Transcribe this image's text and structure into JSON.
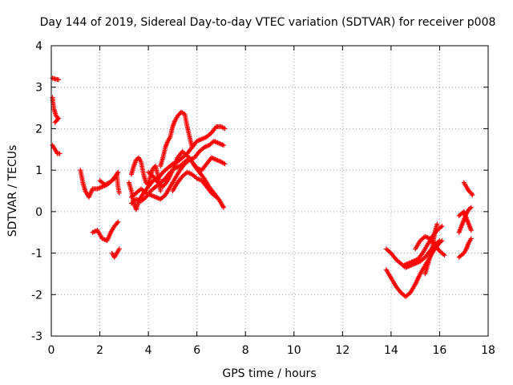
{
  "chart_data": {
    "type": "scatter",
    "title": "Day 144 of 2019, Sidereal Day-to-day VTEC variation (SDTVAR) for receiver p008",
    "xlabel": "GPS time / hours",
    "ylabel": "SDTVAR / TECUs",
    "xlim": [
      0,
      18
    ],
    "ylim": [
      -3,
      4
    ],
    "xticks": [
      0,
      2,
      4,
      6,
      8,
      10,
      12,
      14,
      16,
      18
    ],
    "yticks": [
      -3,
      -2,
      -1,
      0,
      1,
      2,
      3,
      4
    ],
    "grid": true,
    "marker": "+",
    "color": "#ff0000",
    "tracks": [
      {
        "name": "track-a",
        "points": [
          [
            0.05,
            3.22
          ],
          [
            0.15,
            3.2
          ],
          [
            0.3,
            3.18
          ]
        ]
      },
      {
        "name": "track-b",
        "points": [
          [
            0.05,
            2.75
          ],
          [
            0.1,
            2.5
          ],
          [
            0.2,
            2.3
          ],
          [
            0.3,
            2.25
          ],
          [
            0.15,
            2.15
          ]
        ]
      },
      {
        "name": "track-c",
        "points": [
          [
            0.05,
            1.6
          ],
          [
            0.15,
            1.5
          ],
          [
            0.25,
            1.4
          ],
          [
            0.35,
            1.4
          ]
        ]
      },
      {
        "name": "track-d",
        "points": [
          [
            1.2,
            1.0
          ],
          [
            1.3,
            0.7
          ],
          [
            1.4,
            0.5
          ],
          [
            1.55,
            0.35
          ],
          [
            1.7,
            0.55
          ],
          [
            1.9,
            0.55
          ],
          [
            2.1,
            0.6
          ],
          [
            2.3,
            0.65
          ],
          [
            2.5,
            0.75
          ],
          [
            2.7,
            0.9
          ],
          [
            2.75,
            0.6
          ],
          [
            2.8,
            0.45
          ]
        ]
      },
      {
        "name": "track-e",
        "points": [
          [
            2.0,
            0.75
          ],
          [
            2.2,
            0.65
          ],
          [
            2.4,
            0.7
          ],
          [
            2.6,
            0.8
          ],
          [
            2.75,
            0.95
          ]
        ]
      },
      {
        "name": "track-f",
        "points": [
          [
            1.7,
            -0.5
          ],
          [
            1.9,
            -0.45
          ],
          [
            2.1,
            -0.65
          ],
          [
            2.3,
            -0.7
          ],
          [
            2.45,
            -0.5
          ],
          [
            2.6,
            -0.35
          ],
          [
            2.75,
            -0.25
          ]
        ]
      },
      {
        "name": "track-g",
        "points": [
          [
            2.5,
            -1.0
          ],
          [
            2.6,
            -1.1
          ],
          [
            2.7,
            -1.0
          ],
          [
            2.8,
            -0.9
          ]
        ]
      },
      {
        "name": "track-h",
        "points": [
          [
            3.2,
            0.7
          ],
          [
            3.3,
            0.5
          ],
          [
            3.4,
            0.2
          ],
          [
            3.5,
            0.05
          ],
          [
            3.6,
            0.25
          ],
          [
            3.8,
            0.45
          ],
          [
            4.0,
            0.6
          ],
          [
            4.2,
            0.75
          ],
          [
            4.4,
            0.8
          ],
          [
            4.6,
            0.95
          ],
          [
            4.8,
            1.05
          ],
          [
            5.0,
            1.15
          ],
          [
            5.2,
            1.2
          ],
          [
            5.4,
            1.3
          ],
          [
            5.6,
            1.4
          ],
          [
            5.8,
            1.55
          ],
          [
            6.0,
            1.7
          ],
          [
            6.2,
            1.75
          ],
          [
            6.4,
            1.8
          ],
          [
            6.6,
            1.9
          ],
          [
            6.8,
            2.05
          ],
          [
            7.0,
            2.05
          ],
          [
            7.15,
            2.0
          ]
        ]
      },
      {
        "name": "track-i",
        "points": [
          [
            3.3,
            0.35
          ],
          [
            3.5,
            0.45
          ],
          [
            3.7,
            0.55
          ],
          [
            3.9,
            0.45
          ],
          [
            4.1,
            0.4
          ],
          [
            4.3,
            0.35
          ],
          [
            4.5,
            0.3
          ],
          [
            4.7,
            0.4
          ],
          [
            4.9,
            0.6
          ],
          [
            5.1,
            0.8
          ],
          [
            5.3,
            1.0
          ],
          [
            5.5,
            1.15
          ],
          [
            5.7,
            1.25
          ],
          [
            5.9,
            1.3
          ],
          [
            6.1,
            1.45
          ],
          [
            6.3,
            1.55
          ],
          [
            6.5,
            1.6
          ],
          [
            6.7,
            1.7
          ],
          [
            6.9,
            1.65
          ],
          [
            7.1,
            1.6
          ]
        ]
      },
      {
        "name": "track-j",
        "points": [
          [
            3.3,
            0.2
          ],
          [
            3.5,
            0.3
          ],
          [
            3.7,
            0.25
          ],
          [
            3.9,
            0.35
          ],
          [
            4.1,
            0.5
          ],
          [
            4.3,
            0.6
          ],
          [
            4.5,
            0.7
          ],
          [
            4.7,
            0.8
          ],
          [
            4.9,
            0.95
          ],
          [
            5.1,
            1.05
          ],
          [
            5.3,
            1.1
          ],
          [
            5.5,
            1.2
          ],
          [
            5.7,
            1.3
          ],
          [
            5.9,
            1.1
          ],
          [
            6.1,
            0.95
          ],
          [
            6.3,
            0.8
          ],
          [
            6.5,
            0.6
          ],
          [
            6.7,
            0.45
          ],
          [
            6.9,
            0.3
          ],
          [
            7.05,
            0.15
          ],
          [
            7.1,
            0.1
          ]
        ]
      },
      {
        "name": "track-k",
        "points": [
          [
            3.3,
            0.9
          ],
          [
            3.4,
            1.1
          ],
          [
            3.5,
            1.25
          ],
          [
            3.6,
            1.3
          ],
          [
            3.7,
            1.2
          ],
          [
            3.8,
            0.9
          ],
          [
            3.9,
            0.7
          ],
          [
            4.0,
            0.65
          ],
          [
            4.1,
            0.9
          ],
          [
            4.2,
            1.05
          ],
          [
            4.3,
            1.1
          ],
          [
            4.4,
            0.85
          ],
          [
            4.5,
            0.5
          ]
        ]
      },
      {
        "name": "track-l",
        "points": [
          [
            4.5,
            1.1
          ],
          [
            4.6,
            1.3
          ],
          [
            4.7,
            1.55
          ],
          [
            4.8,
            1.7
          ],
          [
            4.9,
            1.8
          ],
          [
            5.0,
            2.05
          ],
          [
            5.1,
            2.2
          ],
          [
            5.2,
            2.3
          ],
          [
            5.35,
            2.4
          ],
          [
            5.5,
            2.35
          ],
          [
            5.6,
            2.05
          ],
          [
            5.7,
            1.8
          ],
          [
            5.8,
            1.55
          ]
        ]
      },
      {
        "name": "track-m",
        "points": [
          [
            4.0,
            0.95
          ],
          [
            4.2,
            0.85
          ],
          [
            4.4,
            0.7
          ],
          [
            4.6,
            0.6
          ],
          [
            4.8,
            0.75
          ],
          [
            5.0,
            1.0
          ],
          [
            5.2,
            1.3
          ],
          [
            5.4,
            1.45
          ],
          [
            5.6,
            1.35
          ],
          [
            5.8,
            1.2
          ],
          [
            6.0,
            1.05
          ],
          [
            6.2,
            1.0
          ],
          [
            6.4,
            1.15
          ],
          [
            6.6,
            1.3
          ],
          [
            6.8,
            1.25
          ],
          [
            7.0,
            1.2
          ],
          [
            7.15,
            1.15
          ]
        ]
      },
      {
        "name": "track-n",
        "points": [
          [
            5.0,
            0.5
          ],
          [
            5.2,
            0.7
          ],
          [
            5.4,
            0.85
          ],
          [
            5.6,
            0.95
          ],
          [
            5.8,
            0.9
          ],
          [
            6.0,
            0.8
          ],
          [
            6.2,
            0.75
          ],
          [
            6.4,
            0.6
          ],
          [
            6.6,
            0.45
          ],
          [
            6.8,
            0.35
          ]
        ]
      },
      {
        "name": "track-o",
        "points": [
          [
            13.8,
            -0.9
          ],
          [
            14.0,
            -1.0
          ],
          [
            14.2,
            -1.15
          ],
          [
            14.4,
            -1.25
          ],
          [
            14.6,
            -1.35
          ],
          [
            14.8,
            -1.3
          ],
          [
            15.0,
            -1.25
          ],
          [
            15.2,
            -1.2
          ],
          [
            15.4,
            -1.1
          ],
          [
            15.6,
            -0.95
          ],
          [
            15.8,
            -0.8
          ],
          [
            16.0,
            -0.7
          ]
        ]
      },
      {
        "name": "track-p",
        "points": [
          [
            13.8,
            -1.4
          ],
          [
            14.0,
            -1.6
          ],
          [
            14.2,
            -1.8
          ],
          [
            14.4,
            -1.95
          ],
          [
            14.6,
            -2.05
          ],
          [
            14.8,
            -1.95
          ],
          [
            15.0,
            -1.75
          ],
          [
            15.2,
            -1.5
          ],
          [
            15.4,
            -1.3
          ],
          [
            15.6,
            -1.1
          ],
          [
            15.8,
            -0.9
          ],
          [
            16.0,
            -0.75
          ],
          [
            16.1,
            -0.7
          ]
        ]
      },
      {
        "name": "track-q",
        "points": [
          [
            14.5,
            -1.3
          ],
          [
            14.7,
            -1.25
          ],
          [
            14.9,
            -1.2
          ],
          [
            15.1,
            -1.15
          ],
          [
            15.3,
            -1.0
          ],
          [
            15.5,
            -0.8
          ],
          [
            15.7,
            -0.6
          ],
          [
            15.9,
            -0.45
          ],
          [
            16.1,
            -0.35
          ]
        ]
      },
      {
        "name": "track-r",
        "points": [
          [
            15.0,
            -0.9
          ],
          [
            15.2,
            -0.7
          ],
          [
            15.4,
            -0.6
          ],
          [
            15.6,
            -0.65
          ],
          [
            15.8,
            -0.8
          ],
          [
            16.0,
            -0.95
          ],
          [
            16.2,
            -1.05
          ]
        ]
      },
      {
        "name": "track-s",
        "points": [
          [
            15.4,
            -1.5
          ],
          [
            15.5,
            -1.3
          ],
          [
            15.6,
            -1.1
          ],
          [
            15.7,
            -0.9
          ],
          [
            15.8,
            -0.5
          ],
          [
            15.9,
            -0.3
          ]
        ]
      },
      {
        "name": "track-t",
        "points": [
          [
            16.8,
            -1.1
          ],
          [
            16.9,
            -1.05
          ],
          [
            17.0,
            -1.0
          ],
          [
            17.1,
            -0.9
          ],
          [
            17.2,
            -0.75
          ],
          [
            17.3,
            -0.65
          ]
        ]
      },
      {
        "name": "track-u",
        "points": [
          [
            16.8,
            -0.1
          ],
          [
            16.9,
            -0.05
          ],
          [
            17.0,
            0.0
          ],
          [
            17.1,
            -0.15
          ],
          [
            17.2,
            -0.3
          ],
          [
            17.3,
            -0.45
          ]
        ]
      },
      {
        "name": "track-v",
        "points": [
          [
            16.8,
            -0.5
          ],
          [
            16.9,
            -0.35
          ],
          [
            17.0,
            -0.2
          ],
          [
            17.1,
            -0.05
          ],
          [
            17.2,
            0.05
          ],
          [
            17.3,
            0.1
          ]
        ]
      },
      {
        "name": "track-w",
        "points": [
          [
            17.0,
            0.7
          ],
          [
            17.1,
            0.6
          ],
          [
            17.2,
            0.5
          ],
          [
            17.3,
            0.45
          ],
          [
            17.35,
            0.4
          ]
        ]
      }
    ]
  }
}
